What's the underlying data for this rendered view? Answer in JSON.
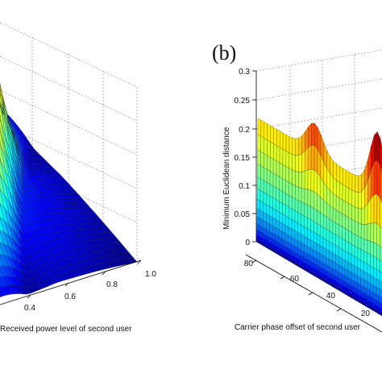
{
  "chart_data": [
    {
      "type": "surface",
      "panel_label": "",
      "x_axis": {
        "label": "Received power level of second user",
        "ticks": [
          "0.4",
          "0.6",
          "0.8",
          "1.0"
        ]
      },
      "surface": {
        "rows": 36,
        "cols": 36,
        "colormap": "jet",
        "shape": "double ridge peaking near 0.8, valley between, falling to zero at corners"
      }
    },
    {
      "type": "surface",
      "panel_label": "(b)",
      "z_axis": {
        "label": "Minimum Euclidean distance",
        "range": [
          0,
          0.3
        ],
        "ticks": [
          "0",
          "0.05",
          "0.1",
          "0.15",
          "0.2",
          "0.25",
          "0.3"
        ]
      },
      "y_axis": {
        "label": "Carrier phase offset of second user",
        "ticks": [
          "80",
          "60",
          "40",
          "20"
        ]
      },
      "surface": {
        "rows": 40,
        "cols": 14,
        "colormap": "jet",
        "shape": "rising sheet from 0 to ~0.2 with peaks near 0.3"
      }
    }
  ]
}
